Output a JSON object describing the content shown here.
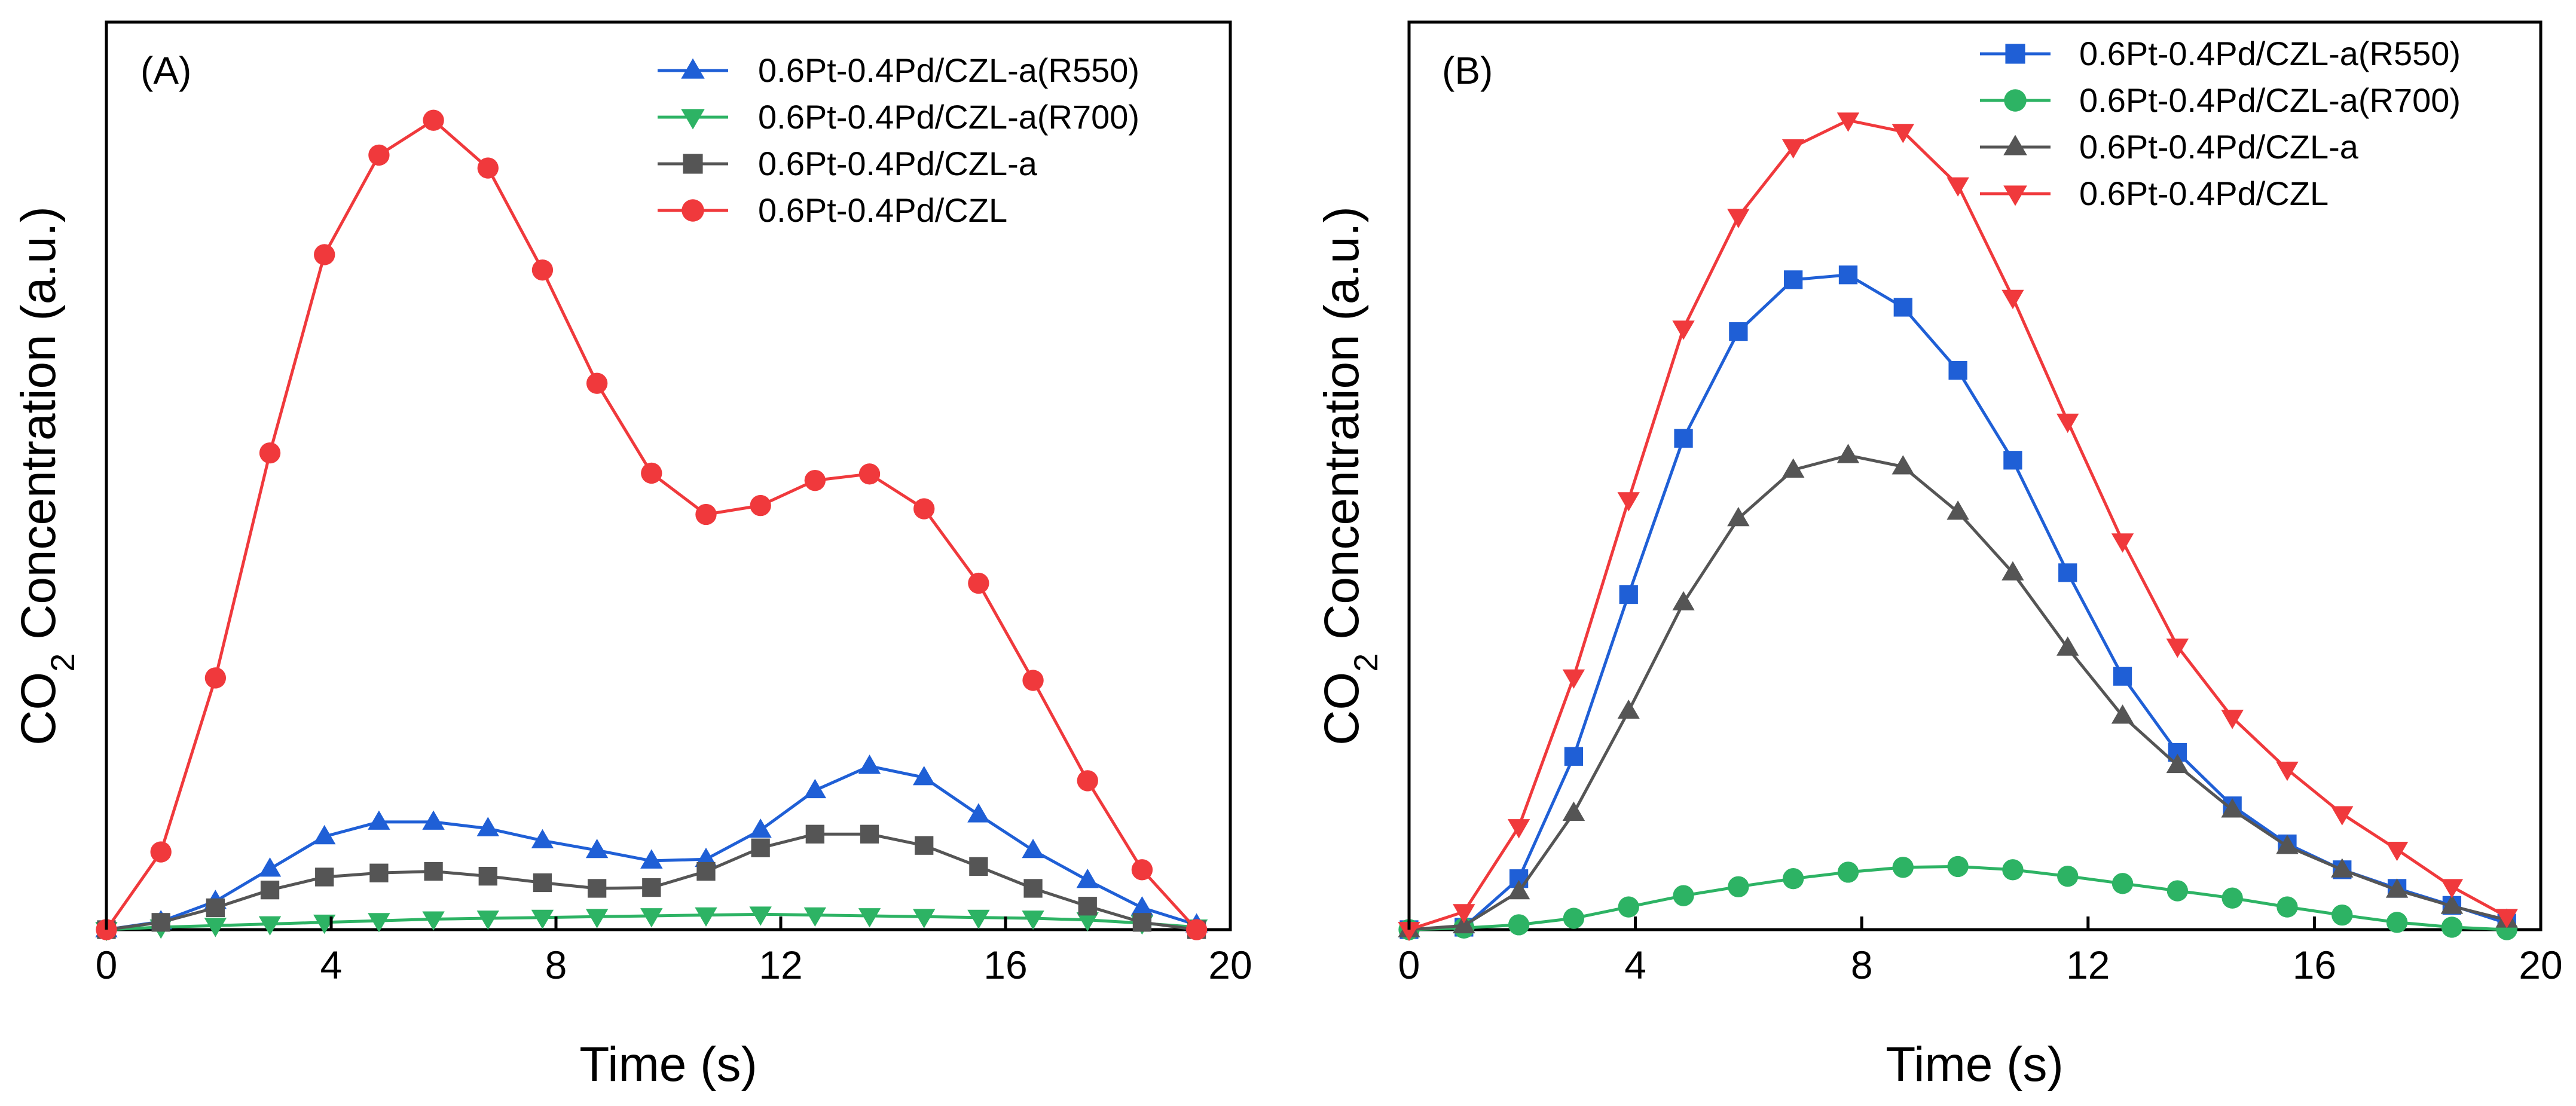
{
  "chart_data": [
    {
      "type": "line",
      "panel_label": "(A)",
      "xlabel": "Time (s)",
      "ylabel": {
        "main": "CO",
        "sub": "2",
        "rest": " Concentration (a.u.)"
      },
      "xlim": [
        0,
        20
      ],
      "ylim": [
        0,
        100
      ],
      "xticks": [
        "0",
        "4",
        "8",
        "12",
        "16",
        "20"
      ],
      "legend_position": "top-right",
      "x": [
        0,
        0.97,
        1.94,
        2.91,
        3.88,
        4.85,
        5.82,
        6.79,
        7.76,
        8.73,
        9.7,
        10.67,
        11.64,
        12.61,
        13.58,
        14.55,
        15.52,
        16.49,
        17.46,
        18.43,
        19.4
      ],
      "series": [
        {
          "name": "0.6Pt-0.4Pd/CZL-a(R550)",
          "color": "#1f5fd6",
          "marker": "triangle-up",
          "values": [
            0,
            1.0,
            3.5,
            7.5,
            11.5,
            13.3,
            13.3,
            12.5,
            11.0,
            9.8,
            8.5,
            8.7,
            12.3,
            17.2,
            20.2,
            18.8,
            14.2,
            9.8,
            6.1,
            2.7,
            0.6
          ]
        },
        {
          "name": "0.6Pt-0.4Pd/CZL-a(R700)",
          "color": "#2db364",
          "marker": "triangle-down",
          "values": [
            0,
            0.3,
            0.5,
            0.7,
            0.9,
            1.1,
            1.3,
            1.4,
            1.5,
            1.6,
            1.7,
            1.8,
            1.9,
            1.8,
            1.7,
            1.6,
            1.5,
            1.4,
            1.2,
            0.8,
            0.3
          ]
        },
        {
          "name": "0.6Pt-0.4Pd/CZL-a",
          "color": "#555555",
          "marker": "square",
          "values": [
            0,
            0.9,
            2.7,
            4.9,
            6.5,
            7.0,
            7.2,
            6.6,
            5.8,
            5.1,
            5.2,
            7.2,
            10.1,
            11.8,
            11.8,
            10.4,
            7.8,
            5.1,
            2.9,
            0.9,
            0
          ]
        },
        {
          "name": "0.6Pt-0.4Pd/CZL",
          "color": "#f0393c",
          "marker": "circle",
          "values": [
            0,
            9.6,
            31.1,
            58.9,
            83.4,
            95.7,
            100.0,
            94.1,
            81.5,
            67.5,
            56.4,
            51.3,
            52.4,
            55.5,
            56.3,
            52.0,
            42.8,
            30.8,
            18.4,
            7.4,
            0
          ]
        }
      ]
    },
    {
      "type": "line",
      "panel_label": "(B)",
      "xlabel": "Time (s)",
      "ylabel": {
        "main": "CO",
        "sub": "2",
        "rest": " Concentration (a.u.)"
      },
      "xlim": [
        0,
        20
      ],
      "ylim": [
        0,
        100
      ],
      "xticks": [
        "0",
        "4",
        "8",
        "12",
        "16",
        "20"
      ],
      "legend_position": "top-right",
      "x": [
        0,
        0.97,
        1.94,
        2.91,
        3.88,
        4.85,
        5.82,
        6.79,
        7.76,
        8.73,
        9.7,
        10.67,
        11.64,
        12.61,
        13.58,
        14.55,
        15.52,
        16.49,
        17.46,
        18.43,
        19.4
      ],
      "series": [
        {
          "name": "0.6Pt-0.4Pd/CZL-a(R550)",
          "color": "#1f5fd6",
          "marker": "square",
          "values": [
            0,
            0.3,
            6.3,
            21.4,
            41.4,
            60.7,
            73.9,
            80.3,
            80.9,
            76.9,
            69.1,
            58.0,
            44.1,
            31.3,
            21.9,
            15.3,
            10.6,
            7.4,
            5.1,
            3.0,
            0.8
          ]
        },
        {
          "name": "0.6Pt-0.4Pd/CZL-a(R700)",
          "color": "#2db364",
          "marker": "circle",
          "values": [
            0,
            0.2,
            0.6,
            1.4,
            2.8,
            4.2,
            5.3,
            6.3,
            7.1,
            7.7,
            7.8,
            7.4,
            6.6,
            5.7,
            4.8,
            3.9,
            2.8,
            1.8,
            0.9,
            0.3,
            0
          ]
        },
        {
          "name": "0.6Pt-0.4Pd/CZL-a",
          "color": "#555555",
          "marker": "triangle-up",
          "values": [
            0,
            0.5,
            4.7,
            14.4,
            27.0,
            40.4,
            50.8,
            56.8,
            58.6,
            57.2,
            51.6,
            44.1,
            34.8,
            26.4,
            20.3,
            14.8,
            10.3,
            7.4,
            4.9,
            2.9,
            1.2
          ]
        },
        {
          "name": "0.6Pt-0.4Pd/CZL",
          "color": "#f0393c",
          "marker": "triangle-down",
          "values": [
            0,
            2.2,
            12.7,
            31.2,
            53.1,
            74.3,
            88.1,
            96.7,
            100.0,
            98.6,
            92.0,
            78.1,
            62.8,
            48.0,
            35.0,
            26.2,
            19.8,
            14.3,
            9.9,
            5.3,
            1.6
          ]
        }
      ]
    }
  ]
}
